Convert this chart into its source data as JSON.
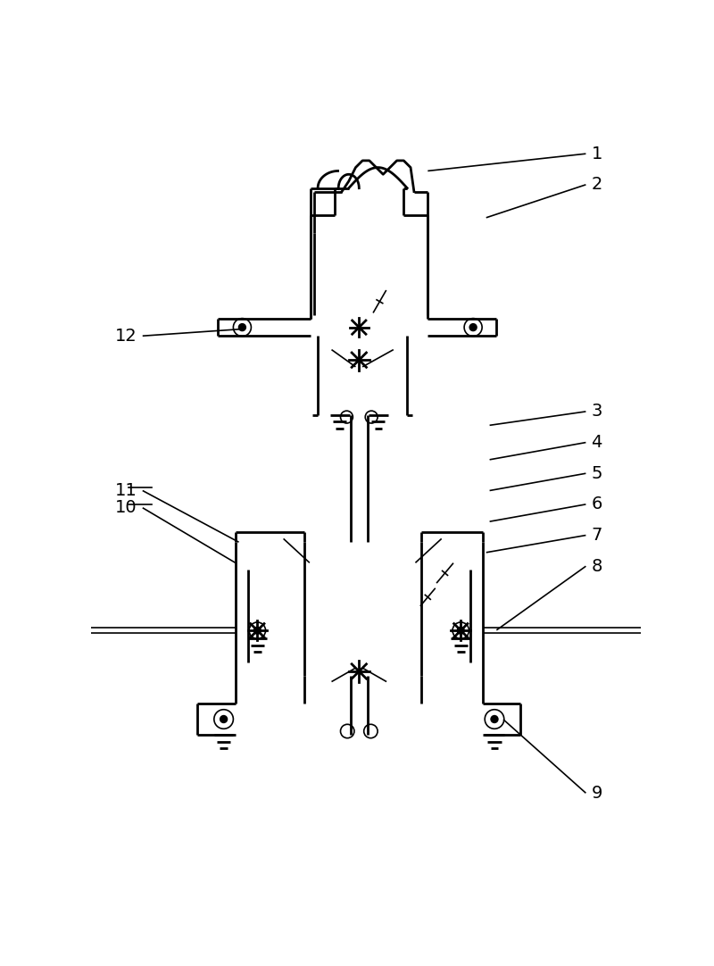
{
  "bg_color": "#ffffff",
  "line_color": "#000000",
  "lw": 2.0,
  "thin_lw": 1.2,
  "fig_width": 8.0,
  "fig_height": 10.82
}
